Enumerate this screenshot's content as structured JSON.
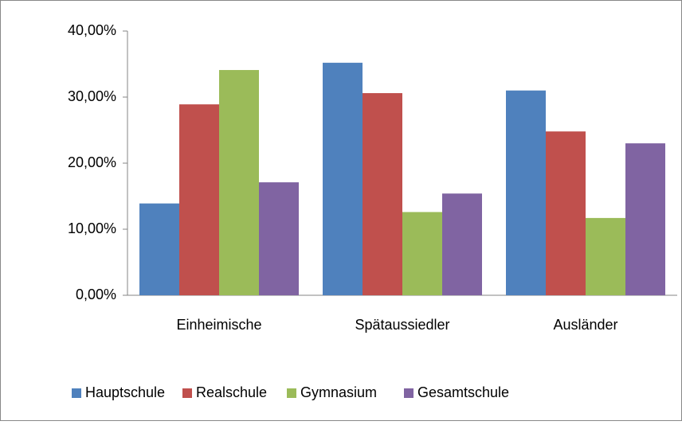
{
  "chart_data": {
    "type": "bar",
    "categories": [
      "Einheimische",
      "Spätaussiedler",
      "Ausländer"
    ],
    "series": [
      {
        "name": "Hauptschule",
        "color": "#4f81bd",
        "values": [
          13.9,
          35.2,
          31.0
        ]
      },
      {
        "name": "Realschule",
        "color": "#c0504d",
        "values": [
          28.9,
          30.6,
          24.8
        ]
      },
      {
        "name": "Gymnasium",
        "color": "#9bbb59",
        "values": [
          34.1,
          12.6,
          11.7
        ]
      },
      {
        "name": "Gesamtschule",
        "color": "#8064a2",
        "values": [
          17.1,
          15.4,
          23.0
        ]
      }
    ],
    "ylim": [
      0,
      40
    ],
    "yticks": [
      {
        "value": 0,
        "label": "0,00%"
      },
      {
        "value": 10,
        "label": "10,00%"
      },
      {
        "value": 20,
        "label": "20,00%"
      },
      {
        "value": 30,
        "label": "30,00%"
      },
      {
        "value": 40,
        "label": "40,00%"
      }
    ],
    "legend": "bottom"
  }
}
